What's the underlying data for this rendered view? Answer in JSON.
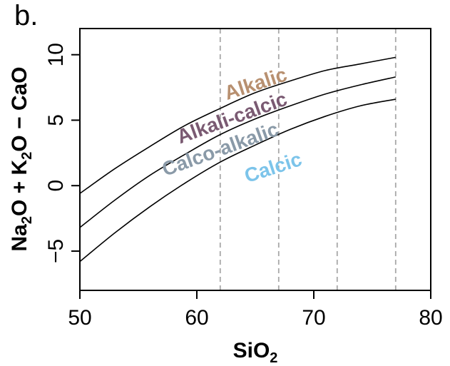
{
  "panel_label": "b.",
  "chart_data": {
    "type": "line",
    "xlabel": "SiO",
    "xlabel_sub": "2",
    "ylabel_parts": [
      {
        "t": "Na",
        "sub": false
      },
      {
        "t": "2",
        "sub": true
      },
      {
        "t": "O + K",
        "sub": false
      },
      {
        "t": "2",
        "sub": true
      },
      {
        "t": "O − CaO",
        "sub": false
      }
    ],
    "xlim": [
      50,
      80
    ],
    "ylim": [
      -8,
      12
    ],
    "x_ticks": [
      50,
      60,
      70,
      80
    ],
    "y_ticks": [
      -5,
      0,
      5,
      10
    ],
    "y_tick_labels": [
      "−5",
      "0",
      "5",
      "10"
    ],
    "grid": false,
    "series": [
      {
        "x": [
          50,
          53,
          56,
          59,
          62,
          65,
          68,
          71,
          74,
          77
        ],
        "y": [
          -0.6,
          1.3,
          3.0,
          4.6,
          5.9,
          7.1,
          8.0,
          8.8,
          9.3,
          9.8
        ]
      },
      {
        "x": [
          50,
          53,
          56,
          59,
          62,
          65,
          68,
          71,
          74,
          77
        ],
        "y": [
          -3.2,
          -1.1,
          0.8,
          2.4,
          3.9,
          5.1,
          6.1,
          7.0,
          7.7,
          8.3
        ]
      },
      {
        "x": [
          50,
          53,
          56,
          59,
          62,
          65,
          68,
          71,
          74,
          77
        ],
        "y": [
          -5.8,
          -3.6,
          -1.6,
          0.2,
          1.8,
          3.1,
          4.3,
          5.3,
          6.1,
          6.6
        ]
      }
    ],
    "vlines": [
      62,
      67,
      72,
      77
    ],
    "annotations": [
      {
        "text": "Alkalic",
        "x": 65.2,
        "y": 7.3,
        "color": "#b89070",
        "angle": -18
      },
      {
        "text": "Alkali-calcic",
        "x": 63.2,
        "y": 4.7,
        "color": "#7a5a72",
        "angle": -20
      },
      {
        "text": "Calco-alkalic",
        "x": 62.2,
        "y": 2.3,
        "color": "#8a9aa8",
        "angle": -20
      },
      {
        "text": "Calcic",
        "x": 66.7,
        "y": 0.9,
        "color": "#7cc4ea",
        "angle": -18
      }
    ],
    "line_color": "#000000",
    "vline_color": "#a8a8a8"
  }
}
